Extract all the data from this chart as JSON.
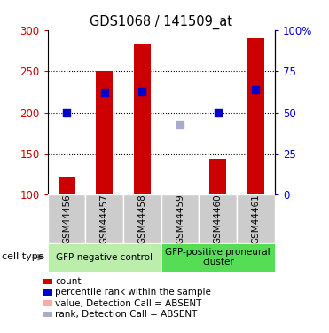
{
  "title": "GDS1068 / 141509_at",
  "samples": [
    "GSM44456",
    "GSM44457",
    "GSM44458",
    "GSM44459",
    "GSM44460",
    "GSM44461"
  ],
  "bar_values": [
    122,
    250,
    282,
    101,
    144,
    290
  ],
  "bar_bottom": 100,
  "bar_color": "#cc0000",
  "absent_bar_color": "#ff9999",
  "dot_values": [
    199,
    224,
    225,
    null,
    199,
    228
  ],
  "dot_color": "#0000cc",
  "absent_dot_value": 185,
  "absent_dot_color": "#aaaacc",
  "absent_sample_idx": 3,
  "ylim_left": [
    100,
    300
  ],
  "ylim_right": [
    0,
    100
  ],
  "yticks_left": [
    100,
    150,
    200,
    250,
    300
  ],
  "yticks_right": [
    0,
    25,
    50,
    75,
    100
  ],
  "yticklabels_right": [
    "0",
    "25",
    "50",
    "75",
    "100%"
  ],
  "groups": [
    {
      "label": "GFP-negative control",
      "samples": [
        0,
        1,
        2
      ],
      "color": "#bbeeaa"
    },
    {
      "label": "GFP-positive proneural\ncluster",
      "samples": [
        3,
        4,
        5
      ],
      "color": "#55dd55"
    }
  ],
  "cell_type_label": "cell type",
  "ytick_color_left": "#cc0000",
  "ytick_color_right": "#0000cc",
  "tick_label_area_color": "#cccccc",
  "legend_items": [
    {
      "label": "count",
      "color": "#cc0000"
    },
    {
      "label": "percentile rank within the sample",
      "color": "#0000cc"
    },
    {
      "label": "value, Detection Call = ABSENT",
      "color": "#ffaaaa"
    },
    {
      "label": "rank, Detection Call = ABSENT",
      "color": "#aaaacc"
    }
  ]
}
